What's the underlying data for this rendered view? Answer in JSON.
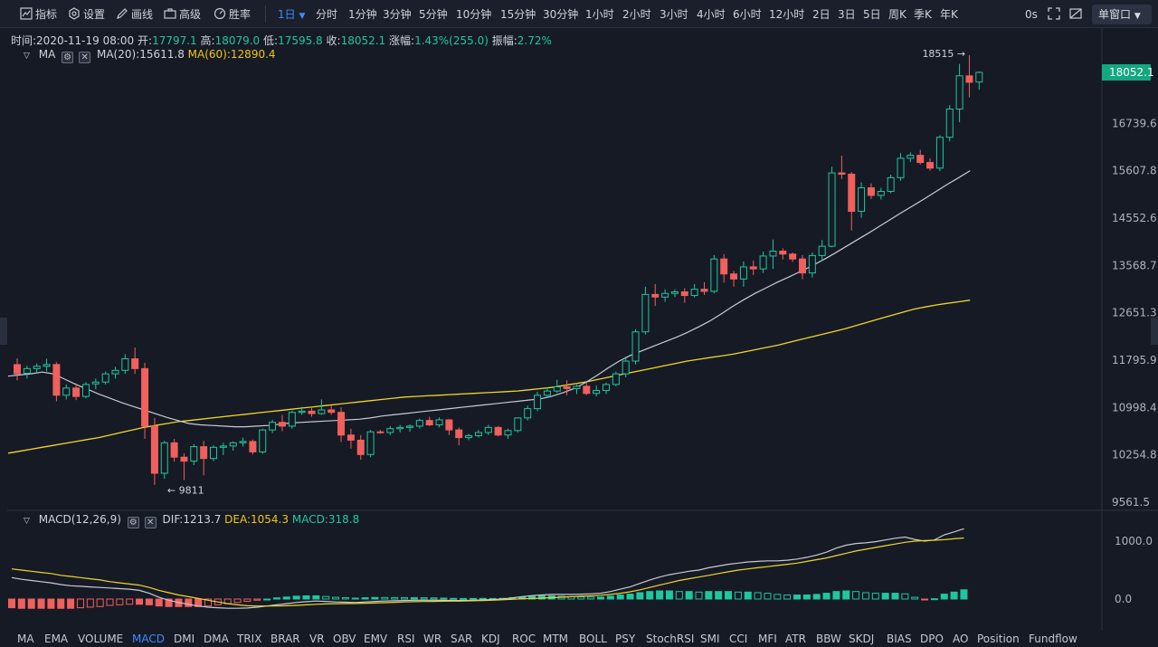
{
  "toolbar": {
    "indicators_label": "指标",
    "settings_label": "设置",
    "draw_label": "画线",
    "advanced_label": "高级",
    "winrate_label": "胜率",
    "active_interval": "1日",
    "intervals": [
      "分时",
      "1分钟",
      "3分钟",
      "5分钟",
      "10分钟",
      "15分钟",
      "30分钟",
      "1小时",
      "2小时",
      "3小时",
      "4小时",
      "6小时",
      "12小时",
      "2日",
      "3日",
      "5日",
      "周K",
      "季K",
      "年K"
    ],
    "latency": "0s",
    "single_window_label": "单窗口"
  },
  "info_line": {
    "time_label": "时间:",
    "time_value": "2020-11-19 08:00",
    "open_label": "开:",
    "open_value": "17797.1",
    "high_label": "高:",
    "high_value": "18079.0",
    "low_label": "低:",
    "low_value": "17595.8",
    "close_label": "收:",
    "close_value": "18052.1",
    "change_label": "涨幅:",
    "change_value": "1.43%(255.0)",
    "amplitude_label": "振幅:",
    "amplitude_value": "2.72%"
  },
  "ma_legend": {
    "name": "MA",
    "ma20": "MA(20):15611.8",
    "ma60": "MA(60):12890.4"
  },
  "macd_legend": {
    "name": "MACD(12,26,9)",
    "dif": "DIF:1213.7",
    "dea": "DEA:1054.3",
    "macd": "MACD:318.8"
  },
  "colors": {
    "up": "#1fc7a0",
    "down": "#f0605d",
    "ma20": "#c9cbd3",
    "ma60": "#f0d629",
    "background": "#161a25"
  },
  "bottom_tabs": {
    "active": "MACD",
    "items": [
      "MA",
      "EMA",
      "VOLUME",
      "MACD",
      "DMI",
      "DMA",
      "TRIX",
      "BRAR",
      "VR",
      "OBV",
      "EMV",
      "RSI",
      "WR",
      "SAR",
      "KDJ",
      "ROC",
      "MTM",
      "BOLL",
      "PSY",
      "StochRSI",
      "SMI",
      "CCI",
      "MFI",
      "ATR",
      "BBW",
      "SKDJ",
      "BIAS",
      "DPO",
      "AO",
      "Position",
      "Fundflow"
    ]
  },
  "chart_data": [
    {
      "type": "candlestick",
      "y_ticks": [
        "18052.1",
        "16739.6",
        "15607.8",
        "14552.6",
        "13568.7",
        "12651.3",
        "11795.9",
        "10998.4",
        "10254.8",
        "9561.5"
      ],
      "price_tag": "18052.1",
      "annotations": [
        {
          "text": "18515",
          "value": 18515
        },
        {
          "text": "9811",
          "value": 9811
        }
      ],
      "log_scale": true,
      "candles": [
        [
          11720,
          11830,
          11450,
          11560
        ],
        [
          11570,
          11700,
          11480,
          11650
        ],
        [
          11650,
          11740,
          11560,
          11690
        ],
        [
          11690,
          11820,
          11600,
          11720
        ],
        [
          11720,
          11760,
          11100,
          11200
        ],
        [
          11200,
          11380,
          11130,
          11320
        ],
        [
          11320,
          11400,
          11120,
          11180
        ],
        [
          11180,
          11420,
          11150,
          11380
        ],
        [
          11390,
          11480,
          11300,
          11420
        ],
        [
          11420,
          11600,
          11380,
          11560
        ],
        [
          11560,
          11680,
          11480,
          11620
        ],
        [
          11620,
          11900,
          11560,
          11820
        ],
        [
          11820,
          12020,
          11560,
          11650
        ],
        [
          11650,
          11750,
          10500,
          10700
        ],
        [
          10700,
          10830,
          9811,
          9980
        ],
        [
          9980,
          10470,
          9900,
          10440
        ],
        [
          10440,
          10500,
          10150,
          10220
        ],
        [
          10220,
          10280,
          9880,
          10160
        ],
        [
          10160,
          10420,
          10100,
          10380
        ],
        [
          10380,
          10470,
          9950,
          10200
        ],
        [
          10200,
          10400,
          10160,
          10370
        ],
        [
          10370,
          10440,
          10250,
          10390
        ],
        [
          10390,
          10460,
          10320,
          10440
        ],
        [
          10440,
          10520,
          10380,
          10460
        ],
        [
          10460,
          10490,
          10260,
          10300
        ],
        [
          10300,
          10660,
          10270,
          10640
        ],
        [
          10640,
          10800,
          10590,
          10760
        ],
        [
          10760,
          10880,
          10620,
          10700
        ],
        [
          10700,
          10950,
          10660,
          10920
        ],
        [
          10920,
          11010,
          10880,
          10940
        ],
        [
          10940,
          10990,
          10850,
          10900
        ],
        [
          10900,
          11130,
          10880,
          10960
        ],
        [
          10960,
          11030,
          10880,
          10920
        ],
        [
          10920,
          11000,
          10450,
          10560
        ],
        [
          10560,
          10660,
          10350,
          10480
        ],
        [
          10480,
          10560,
          10180,
          10260
        ],
        [
          10260,
          10640,
          10220,
          10610
        ],
        [
          10610,
          10640,
          10580,
          10600
        ],
        [
          10600,
          10700,
          10560,
          10660
        ],
        [
          10660,
          10720,
          10600,
          10680
        ],
        [
          10680,
          10730,
          10610,
          10700
        ],
        [
          10700,
          10820,
          10660,
          10790
        ],
        [
          10790,
          10850,
          10700,
          10720
        ],
        [
          10720,
          10840,
          10680,
          10800
        ],
        [
          10800,
          10810,
          10560,
          10640
        ],
        [
          10640,
          10680,
          10400,
          10520
        ],
        [
          10520,
          10580,
          10480,
          10550
        ],
        [
          10550,
          10640,
          10520,
          10600
        ],
        [
          10600,
          10720,
          10560,
          10680
        ],
        [
          10680,
          10700,
          10540,
          10560
        ],
        [
          10560,
          10660,
          10500,
          10630
        ],
        [
          10630,
          10840,
          10600,
          10830
        ],
        [
          10830,
          11030,
          10790,
          10980
        ],
        [
          10980,
          11260,
          10940,
          11200
        ],
        [
          11200,
          11330,
          11150,
          11270
        ],
        [
          11270,
          11460,
          11240,
          11340
        ],
        [
          11340,
          11450,
          11200,
          11310
        ],
        [
          11310,
          11380,
          11220,
          11350
        ],
        [
          11350,
          11420,
          11200,
          11230
        ],
        [
          11230,
          11360,
          11180,
          11280
        ],
        [
          11280,
          11410,
          11220,
          11380
        ],
        [
          11380,
          11600,
          11350,
          11560
        ],
        [
          11560,
          11860,
          11500,
          11780
        ],
        [
          11780,
          12350,
          11720,
          12300
        ],
        [
          12300,
          13150,
          12250,
          13000
        ],
        [
          13000,
          13200,
          12780,
          12950
        ],
        [
          12950,
          13100,
          12860,
          13020
        ],
        [
          13020,
          13100,
          12950,
          13050
        ],
        [
          13050,
          13120,
          12840,
          12980
        ],
        [
          12980,
          13200,
          12940,
          13100
        ],
        [
          13100,
          13240,
          12990,
          13060
        ],
        [
          13060,
          13780,
          13020,
          13700
        ],
        [
          13700,
          13800,
          13230,
          13400
        ],
        [
          13400,
          13460,
          13150,
          13300
        ],
        [
          13300,
          13650,
          13150,
          13540
        ],
        [
          13540,
          13670,
          13380,
          13500
        ],
        [
          13500,
          13850,
          13420,
          13760
        ],
        [
          13760,
          14100,
          13500,
          13860
        ],
        [
          13860,
          13920,
          13690,
          13800
        ],
        [
          13800,
          13830,
          13640,
          13700
        ],
        [
          13700,
          13780,
          13300,
          13420
        ],
        [
          13420,
          13830,
          13330,
          13770
        ],
        [
          13770,
          14090,
          13660,
          13960
        ],
        [
          13960,
          15700,
          13940,
          15560
        ],
        [
          15560,
          15960,
          15420,
          15530
        ],
        [
          15530,
          15580,
          14290,
          14700
        ],
        [
          14700,
          15340,
          14560,
          15220
        ],
        [
          15220,
          15320,
          14970,
          15050
        ],
        [
          15050,
          15220,
          14960,
          15140
        ],
        [
          15140,
          15520,
          15100,
          15450
        ],
        [
          15450,
          16020,
          15380,
          15900
        ],
        [
          15900,
          16040,
          15810,
          15970
        ],
        [
          15970,
          16100,
          15750,
          15800
        ],
        [
          15800,
          15900,
          15610,
          15670
        ],
        [
          15670,
          16450,
          15600,
          16400
        ],
        [
          16400,
          17200,
          16300,
          17100
        ],
        [
          17100,
          18280,
          16770,
          17960
        ],
        [
          17960,
          18515,
          17400,
          17790
        ],
        [
          17797.1,
          18079,
          17595.8,
          18052.1
        ]
      ],
      "ma20": [
        11520,
        11540,
        11560,
        11590,
        11560,
        11470,
        11380,
        11300,
        11220,
        11150,
        11080,
        11020,
        10960,
        10900,
        10840,
        10790,
        10740,
        10720,
        10710,
        10700,
        10690,
        10690,
        10700,
        10710,
        10730,
        10750,
        10760,
        10770,
        10780,
        10790,
        10800,
        10810,
        10830,
        10860,
        10880,
        10900,
        10920,
        10940,
        10960,
        10980,
        11000,
        11020,
        11040,
        11060,
        11080,
        11100,
        11120,
        11140,
        11180,
        11240,
        11310,
        11410,
        11530,
        11660,
        11780,
        11880,
        11960,
        12040,
        12120,
        12200,
        12290,
        12390,
        12500,
        12630,
        12770,
        12900,
        13020,
        13130,
        13240,
        13340,
        13450,
        13560,
        13680,
        13810,
        13950,
        14090,
        14230,
        14380,
        14530,
        14680,
        14830,
        14980,
        15140,
        15300,
        15450,
        15610.8
      ],
      "ma20_start": 18,
      "ma60": [
        10280,
        10310,
        10340,
        10370,
        10400,
        10430,
        10460,
        10490,
        10520,
        10560,
        10600,
        10640,
        10680,
        10710,
        10740,
        10770,
        10790,
        10810,
        10830,
        10850,
        10870,
        10890,
        10910,
        10930,
        10950,
        10970,
        10990,
        11010,
        11030,
        11050,
        11070,
        11090,
        11110,
        11130,
        11150,
        11170,
        11180,
        11190,
        11200,
        11210,
        11220,
        11230,
        11240,
        11250,
        11260,
        11270,
        11290,
        11310,
        11330,
        11360,
        11390,
        11420,
        11460,
        11500,
        11540,
        11580,
        11620,
        11660,
        11700,
        11740,
        11780,
        11810,
        11840,
        11870,
        11900,
        11940,
        11980,
        12020,
        12060,
        12110,
        12160,
        12210,
        12260,
        12310,
        12360,
        12420,
        12480,
        12540,
        12600,
        12660,
        12720,
        12760,
        12800,
        12830,
        12860,
        12890.4
      ]
    },
    {
      "type": "macd",
      "y_ticks": [
        "1000.0",
        "0.0"
      ],
      "dif": [
        370,
        340,
        320,
        300,
        280,
        250,
        230,
        220,
        210,
        200,
        190,
        180,
        170,
        150,
        100,
        30,
        -20,
        -60,
        -90,
        -120,
        -140,
        -150,
        -160,
        -160,
        -155,
        -140,
        -120,
        -100,
        -80,
        -60,
        -45,
        -35,
        -40,
        -50,
        -55,
        -60,
        -50,
        -40,
        -35,
        -30,
        -25,
        -20,
        -20,
        -20,
        -22,
        -25,
        -25,
        -20,
        -15,
        -10,
        0,
        20,
        40,
        60,
        70,
        80,
        80,
        80,
        85,
        90,
        100,
        130,
        170,
        210,
        270,
        330,
        380,
        420,
        450,
        480,
        500,
        540,
        570,
        600,
        620,
        640,
        650,
        660,
        660,
        670,
        690,
        720,
        760,
        810,
        880,
        930,
        960,
        970,
        990,
        1020,
        1050,
        1070,
        1030,
        1000,
        1020,
        1110,
        1160,
        1213.7
      ],
      "dea": [
        520,
        500,
        480,
        460,
        440,
        410,
        390,
        370,
        350,
        330,
        300,
        280,
        260,
        240,
        200,
        150,
        110,
        70,
        40,
        10,
        -20,
        -50,
        -80,
        -100,
        -115,
        -120,
        -120,
        -120,
        -115,
        -110,
        -100,
        -90,
        -85,
        -80,
        -78,
        -76,
        -72,
        -68,
        -62,
        -56,
        -50,
        -45,
        -42,
        -40,
        -38,
        -36,
        -34,
        -30,
        -26,
        -20,
        -12,
        -4,
        4,
        10,
        16,
        24,
        32,
        40,
        48,
        56,
        66,
        80,
        100,
        125,
        160,
        200,
        240,
        280,
        320,
        350,
        380,
        410,
        440,
        470,
        500,
        520,
        540,
        560,
        580,
        600,
        620,
        650,
        680,
        710,
        750,
        790,
        830,
        860,
        890,
        920,
        950,
        980,
        1000,
        1010,
        1015,
        1025,
        1040,
        1054.3
      ],
      "macd_hist": [
        -150,
        -160,
        -160,
        -160,
        -160,
        -160,
        -160,
        -150,
        -140,
        -130,
        -110,
        -100,
        -90,
        -90,
        -100,
        -120,
        -130,
        -130,
        -130,
        -130,
        -120,
        -100,
        -80,
        -60,
        -40,
        -20,
        0,
        20,
        35,
        50,
        55,
        55,
        45,
        30,
        23,
        16,
        22,
        28,
        27,
        26,
        25,
        25,
        22,
        20,
        16,
        11,
        9,
        10,
        11,
        10,
        12,
        24,
        36,
        50,
        54,
        56,
        48,
        40,
        37,
        34,
        34,
        50,
        70,
        85,
        110,
        130,
        140,
        140,
        130,
        130,
        120,
        130,
        130,
        130,
        120,
        120,
        110,
        100,
        80,
        70,
        70,
        70,
        80,
        100,
        130,
        140,
        130,
        110,
        100,
        100,
        100,
        90,
        30,
        -10,
        5,
        85,
        120,
        159.4
      ]
    }
  ]
}
